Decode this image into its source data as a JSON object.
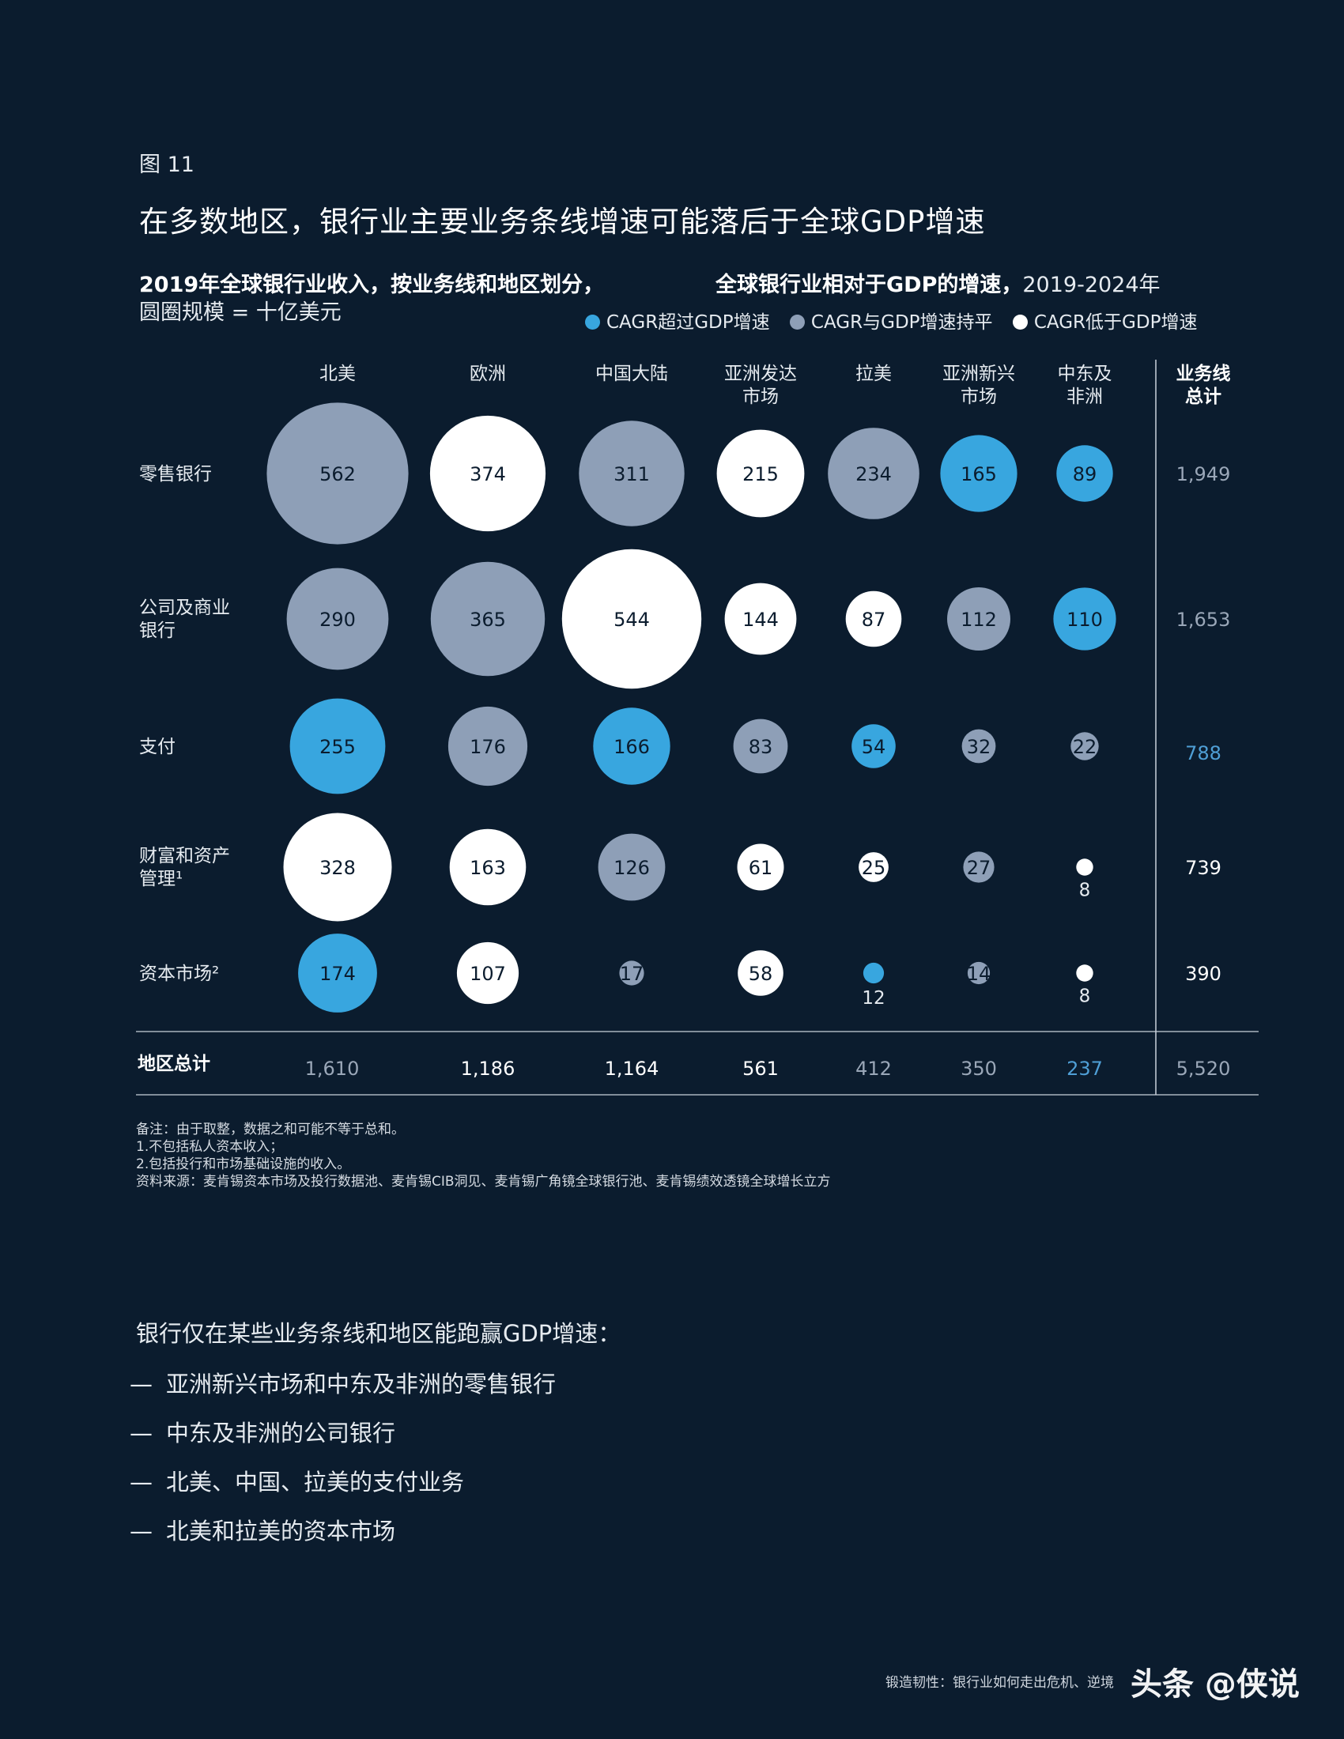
{
  "figure_label": "图 11",
  "title": "在多数地区，银行业主要业务条线增速可能落后于全球GDP增速",
  "subtitle_left_bold": "2019年全球银行业收入，按业务线和地区划分，",
  "subtitle_left_line2": "圆圈规模 = 十亿美元",
  "subtitle_right_bold": "全球银行业相对于GDP的增速，",
  "subtitle_right_years": "2019-2024年",
  "colors": {
    "above": "#38a6df",
    "par": "#8e9fb7",
    "below": "#ffffff",
    "background": "#0b1c2e",
    "total_highlight": "#4f9fd6",
    "total_dim": "#9aa7b8"
  },
  "legend": [
    {
      "key": "above",
      "label": "CAGR超过GDP增速"
    },
    {
      "key": "par",
      "label": "CAGR与GDP增速持平"
    },
    {
      "key": "below",
      "label": "CAGR低于GDP增速"
    }
  ],
  "chart_data": {
    "type": "bubble-matrix",
    "unit": "十亿美元",
    "columns": [
      {
        "label": [
          "北美"
        ]
      },
      {
        "label": [
          "欧洲"
        ]
      },
      {
        "label": [
          "中国大陆"
        ]
      },
      {
        "label": [
          "亚洲发达",
          "市场"
        ]
      },
      {
        "label": [
          "拉美"
        ]
      },
      {
        "label": [
          "亚洲新兴",
          "市场"
        ]
      },
      {
        "label": [
          "中东及",
          "非洲"
        ]
      }
    ],
    "total_column_label": [
      "业务线",
      "总计"
    ],
    "rows": [
      {
        "label": [
          "零售银行"
        ],
        "values": [
          562,
          374,
          311,
          215,
          234,
          165,
          89
        ],
        "growth": [
          "par",
          "below",
          "par",
          "below",
          "par",
          "above",
          "above"
        ],
        "total": "1,949",
        "total_style": "dim"
      },
      {
        "label": [
          "公司及商业",
          "银行"
        ],
        "values": [
          290,
          365,
          544,
          144,
          87,
          112,
          110
        ],
        "growth": [
          "par",
          "par",
          "below",
          "below",
          "below",
          "par",
          "above"
        ],
        "total": "1,653",
        "total_style": "dim"
      },
      {
        "label": [
          "支付"
        ],
        "values": [
          255,
          176,
          166,
          83,
          54,
          32,
          22
        ],
        "growth": [
          "above",
          "par",
          "above",
          "par",
          "above",
          "par",
          "par"
        ],
        "total": "788",
        "total_style": "highlight"
      },
      {
        "label": [
          "财富和资产",
          "管理¹"
        ],
        "values": [
          328,
          163,
          126,
          61,
          25,
          27,
          8
        ],
        "growth": [
          "below",
          "below",
          "par",
          "below",
          "below",
          "par",
          "below"
        ],
        "total": "739",
        "total_style": "normal"
      },
      {
        "label": [
          "资本市场²"
        ],
        "values": [
          174,
          107,
          17,
          58,
          12,
          14,
          8
        ],
        "growth": [
          "above",
          "below",
          "par",
          "below",
          "above",
          "par",
          "below"
        ],
        "total": "390",
        "total_style": "normal"
      }
    ],
    "region_totals_label": "地区总计",
    "region_totals": [
      {
        "value": "1,610",
        "style": "dim"
      },
      {
        "value": "1,186",
        "style": "normal"
      },
      {
        "value": "1,164",
        "style": "normal"
      },
      {
        "value": "561",
        "style": "normal"
      },
      {
        "value": "412",
        "style": "dim"
      },
      {
        "value": "350",
        "style": "dim"
      },
      {
        "value": "237",
        "style": "highlight"
      }
    ],
    "grand_total": {
      "value": "5,520",
      "style": "dim"
    }
  },
  "notes": [
    "备注：由于取整，数据之和可能不等于总和。",
    "1.不包括私人资本收入；",
    "2.包括投行和市场基础设施的收入。",
    "资料来源：麦肯锡资本市场及投行数据池、麦肯锡CIB洞见、麦肯锡广角镜全球银行池、麦肯锡绩效透镜全球增长立方"
  ],
  "body_intro": "银行仅在某些业务条线和地区能跑赢GDP增速：",
  "bullets": [
    "亚洲新兴市场和中东及非洲的零售银行",
    "中东及非洲的公司银行",
    "北美、中国、拉美的支付业务",
    "北美和拉美的资本市场"
  ],
  "bullet_dash": "—",
  "footer": "锻造韧性：银行业如何走出危机、逆境",
  "watermark": "头条 @侠说"
}
